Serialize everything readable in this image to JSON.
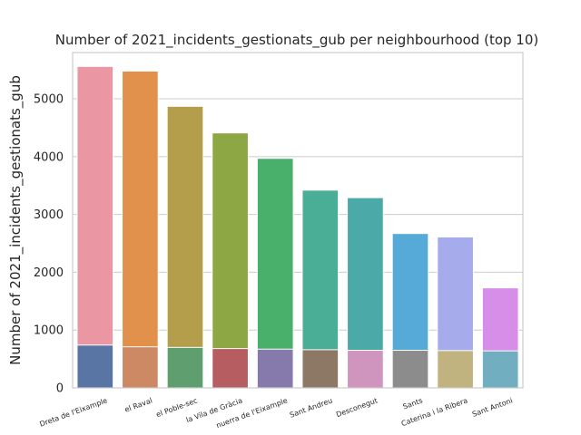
{
  "chart_data": {
    "type": "bar",
    "title": "Number of 2021_incidents_gestionats_gub per neighbourhood (top 10)",
    "ylabel": "Number of 2021_incidents_gestionats_gub",
    "xlabel": "",
    "ylim": [
      0,
      5800
    ],
    "yticks": [
      0,
      1000,
      2000,
      3000,
      4000,
      5000
    ],
    "grid": "horizontal",
    "categories": [
      "Dreta de l'Eixample",
      "el Raval",
      "el Poble-sec",
      "la Vila de Gràcia",
      "l'Antiga Esquerra de l'Eixample",
      "Sant Andreu",
      "Desconegut",
      "Sants",
      "Sant Pere, Santa Caterina i la Ribera",
      "Sant Antoni"
    ],
    "tick_labels": [
      "Dreta de l'Eixample",
      "el Raval",
      "el Poble-sec",
      "la Vila de Gràcia",
      "nuerra de l'Eixample",
      "Sant Andreu",
      "Desconegut",
      "Sants",
      "Caterina i la Ribera",
      "Sant Antoni"
    ],
    "series": [
      {
        "values": [
          5560,
          5480,
          4870,
          4410,
          3970,
          3420,
          3290,
          2670,
          2610,
          1730
        ],
        "colors": [
          "#ea96a3",
          "#e1914c",
          "#b59e4b",
          "#8ea745",
          "#49b06b",
          "#4aae96",
          "#4ba9a8",
          "#56aad8",
          "#a6abec",
          "#d68ee8"
        ]
      },
      {
        "values": [
          740,
          710,
          700,
          680,
          670,
          660,
          650,
          650,
          645,
          640
        ],
        "colors": [
          "#5875a4",
          "#cc8963",
          "#5f9e6e",
          "#b55d60",
          "#857aab",
          "#8d7866",
          "#d095bf",
          "#8c8c8c",
          "#c1b37f",
          "#71aec0"
        ]
      }
    ]
  }
}
